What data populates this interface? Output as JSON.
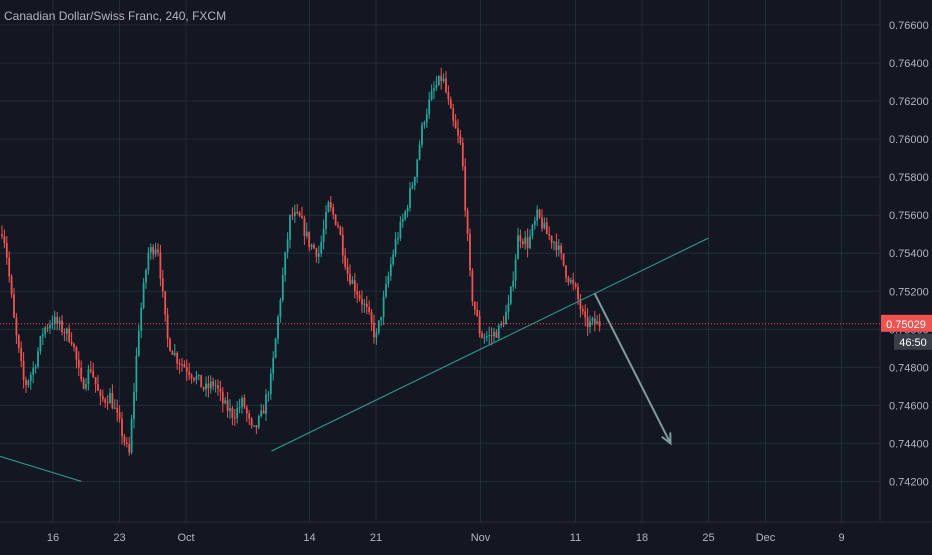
{
  "header": {
    "title": "Canadian Dollar/Swiss Franc, 240, FXCM"
  },
  "colors": {
    "background": "#131722",
    "grid": "#242a38",
    "up": "#26a69a",
    "down": "#ef5350",
    "trendline": "#2f8f86",
    "arrow": "#7f9ba0",
    "price_line": "#ef5350",
    "axis_text": "#b2b5be",
    "price_label_bg": "#ef5350",
    "price_label_text": "#ffffff",
    "timer_bg": "#3a3e48"
  },
  "chart_data": {
    "type": "candlestick",
    "title": "Canadian Dollar/Swiss Franc, 240, FXCM",
    "x_ticks": [
      "16",
      "23",
      "Oct",
      "14",
      "21",
      "Nov",
      "11",
      "18",
      "25",
      "Dec",
      "9"
    ],
    "y_ticks": [
      "0.76600",
      "0.76400",
      "0.76200",
      "0.76000",
      "0.75800",
      "0.75600",
      "0.75400",
      "0.75200",
      "0.75000",
      "0.74800",
      "0.74600",
      "0.74400",
      "0.74200"
    ],
    "ylim": [
      0.7405,
      0.767
    ],
    "grid": true,
    "current_price": "0.75029",
    "current_price_value": 0.75029,
    "countdown": "46:50",
    "swing_path": [
      [
        "Sep 10",
        0.755
      ],
      [
        "Sep 11",
        0.7565
      ],
      [
        "Sep 12",
        0.7545
      ],
      [
        "Sep 13",
        0.75
      ],
      [
        "Sep 14",
        0.747
      ],
      [
        "Sep 15",
        0.748
      ],
      [
        "Sep 16",
        0.75
      ],
      [
        "Sep 17",
        0.7505
      ],
      [
        "Sep 18",
        0.75
      ],
      [
        "Sep 19",
        0.7495
      ],
      [
        "Sep 20",
        0.747
      ],
      [
        "Sep 21",
        0.748
      ],
      [
        "Sep 22",
        0.7462
      ],
      [
        "Sep 23",
        0.7465
      ],
      [
        "Sep 24",
        0.745
      ],
      [
        "Sep 25",
        0.7433
      ],
      [
        "Sep 26",
        0.75
      ],
      [
        "Sep 27",
        0.754
      ],
      [
        "Sep 28",
        0.7545
      ],
      [
        "Sep 29",
        0.7495
      ],
      [
        "Sep 30",
        0.7485
      ],
      [
        "Oct 1",
        0.748
      ],
      [
        "Oct 2",
        0.7475
      ],
      [
        "Oct 3",
        0.7468
      ],
      [
        "Oct 4",
        0.7472
      ],
      [
        "Oct 5",
        0.746
      ],
      [
        "Oct 6",
        0.7455
      ],
      [
        "Oct 7",
        0.7462
      ],
      [
        "Oct 8",
        0.7445
      ],
      [
        "Oct 9",
        0.7455
      ],
      [
        "Oct 10",
        0.7475
      ],
      [
        "Oct 11",
        0.752
      ],
      [
        "Oct 12",
        0.756
      ],
      [
        "Oct 13",
        0.7558
      ],
      [
        "Oct 14",
        0.7545
      ],
      [
        "Oct 15",
        0.754
      ],
      [
        "Oct 16",
        0.7565
      ],
      [
        "Oct 17",
        0.7555
      ],
      [
        "Oct 18",
        0.753
      ],
      [
        "Oct 19",
        0.752
      ],
      [
        "Oct 20",
        0.751
      ],
      [
        "Oct 21",
        0.7495
      ],
      [
        "Oct 22",
        0.752
      ],
      [
        "Oct 23",
        0.7545
      ],
      [
        "Oct 24",
        0.756
      ],
      [
        "Oct 25",
        0.758
      ],
      [
        "Oct 26",
        0.761
      ],
      [
        "Oct 27",
        0.7625
      ],
      [
        "Oct 28",
        0.7633
      ],
      [
        "Oct 29",
        0.761
      ],
      [
        "Oct 30",
        0.7595
      ],
      [
        "Oct 31",
        0.752
      ],
      [
        "Nov 1",
        0.7497
      ],
      [
        "Nov 2",
        0.7496
      ],
      [
        "Nov 3",
        0.75
      ],
      [
        "Nov 4",
        0.7512
      ],
      [
        "Nov 5",
        0.755
      ],
      [
        "Nov 6",
        0.7545
      ],
      [
        "Nov 7",
        0.756
      ],
      [
        "Nov 8",
        0.755
      ],
      [
        "Nov 9",
        0.7545
      ],
      [
        "Nov 10",
        0.753
      ],
      [
        "Nov 11",
        0.752
      ],
      [
        "Nov 12",
        0.7503
      ]
    ],
    "trendlines": [
      {
        "from": [
          "Sep 7",
          0.744
        ],
        "to": [
          "Sep 20",
          0.742
        ]
      },
      {
        "from": [
          "Oct 10",
          0.7436
        ],
        "to": [
          "Nov 25",
          0.7548
        ]
      }
    ],
    "arrow": {
      "from": [
        "Nov 13",
        0.7519
      ],
      "to": [
        "Nov 21",
        0.744
      ]
    }
  }
}
